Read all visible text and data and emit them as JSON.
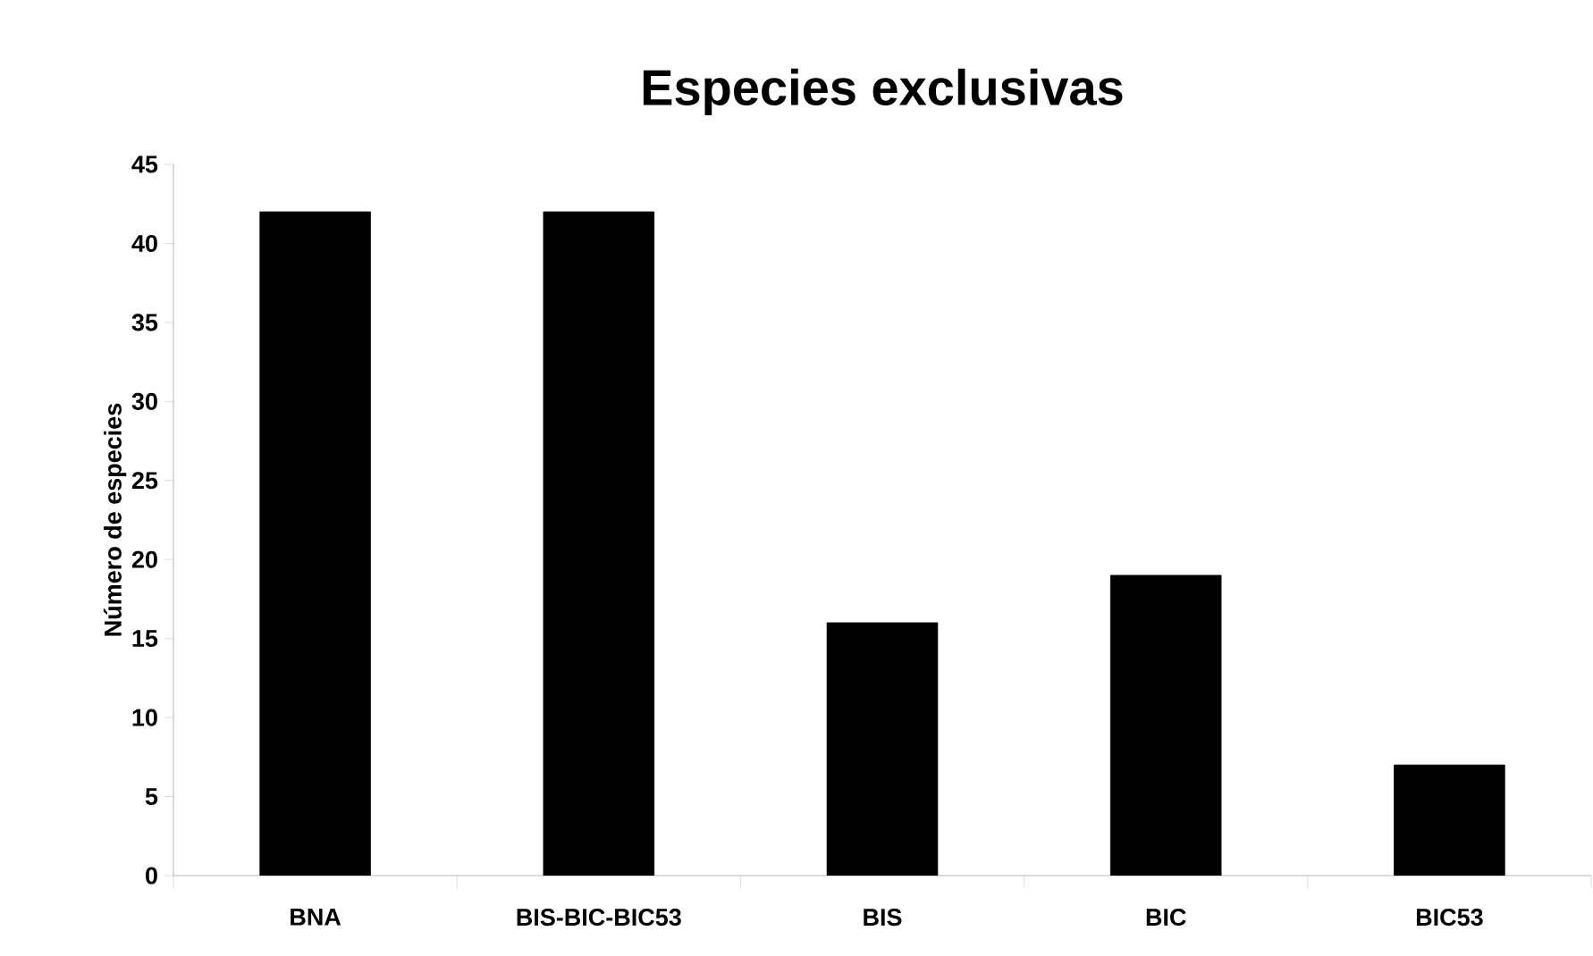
{
  "chart_data": {
    "type": "bar",
    "title": "Especies exclusivas",
    "ylabel": "Número de especies",
    "categories": [
      "BNA",
      "BIS-BIC-BIC53",
      "BIS",
      "BIC",
      "BIC53"
    ],
    "values": [
      42,
      42,
      16,
      19,
      7
    ],
    "color": "#000000",
    "ylim": [
      0,
      45
    ],
    "yticks": [
      0,
      5,
      10,
      15,
      20,
      25,
      30,
      35,
      40,
      45
    ]
  }
}
